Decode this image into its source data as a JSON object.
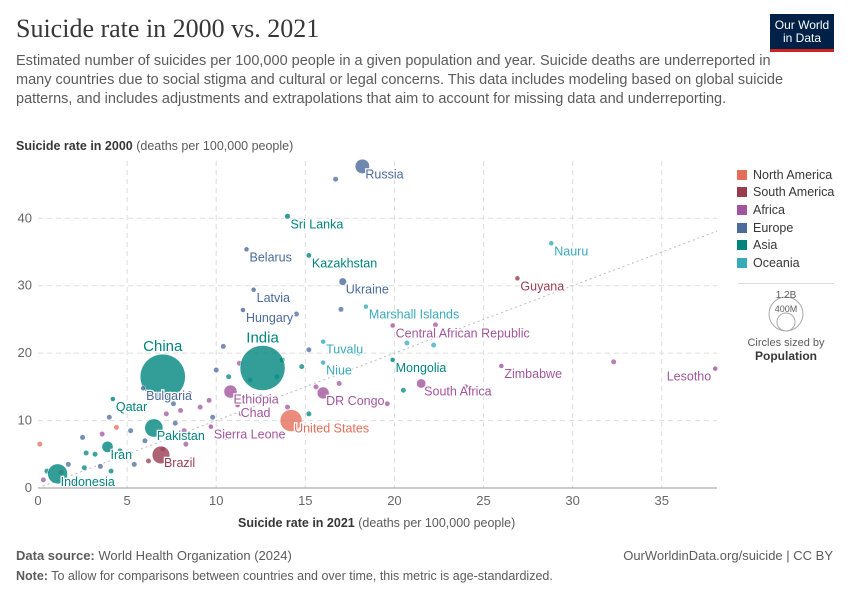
{
  "header": {
    "title": "Suicide rate in 2000 vs. 2021",
    "subtitle": "Estimated number of suicides per 100,000 people in a given population and year. Suicide deaths are underreported in many countries due to social stigma and cultural or legal concerns. This data includes modeling based on global suicide patterns, and includes adjustments and extrapolations that aim to account for missing data and underreporting.",
    "logo": "Our World in Data"
  },
  "chart_data": {
    "type": "scatter",
    "ylabel_bold": "Suicide rate in 2000",
    "ylabel_rest": " (deaths per 100,000 people)",
    "xlabel_bold": "Suicide rate in 2021",
    "xlabel_rest": " (deaths per 100,000 people)",
    "xlim": [
      0,
      38.1
    ],
    "ylim": [
      0,
      48.5
    ],
    "xticks": [
      0,
      5,
      10,
      15,
      20,
      25,
      30,
      35
    ],
    "yticks": [
      0,
      10,
      20,
      30,
      40
    ],
    "grid": true,
    "reference_line": "y = x",
    "regions": [
      {
        "name": "North America",
        "color": "#e56e5a"
      },
      {
        "name": "South America",
        "color": "#9a3c50"
      },
      {
        "name": "Africa",
        "color": "#a2559c"
      },
      {
        "name": "Europe",
        "color": "#4c6a9c"
      },
      {
        "name": "Asia",
        "color": "#00847e"
      },
      {
        "name": "Oceania",
        "color": "#38aaba"
      }
    ],
    "labeled_points": [
      {
        "name": "Russia",
        "x": 18.2,
        "y": 47.7,
        "region": "Europe",
        "pop": 145
      },
      {
        "name": "Sri Lanka",
        "x": 14.0,
        "y": 40.3,
        "region": "Asia",
        "pop": 22
      },
      {
        "name": "Belarus",
        "x": 11.7,
        "y": 35.4,
        "region": "Europe",
        "pop": 9
      },
      {
        "name": "Kazakhstan",
        "x": 15.2,
        "y": 34.5,
        "region": "Asia",
        "pop": 19
      },
      {
        "name": "Latvia",
        "x": 12.1,
        "y": 29.4,
        "region": "Europe",
        "pop": 2
      },
      {
        "name": "Ukraine",
        "x": 17.1,
        "y": 30.6,
        "region": "Europe",
        "pop": 40
      },
      {
        "name": "Hungary",
        "x": 11.5,
        "y": 26.4,
        "region": "Europe",
        "pop": 10
      },
      {
        "name": "Marshall Islands",
        "x": 18.4,
        "y": 26.9,
        "region": "Oceania",
        "pop": 0.05
      },
      {
        "name": "Nauru",
        "x": 28.8,
        "y": 36.3,
        "region": "Oceania",
        "pop": 0.01
      },
      {
        "name": "Guyana",
        "x": 26.9,
        "y": 31.1,
        "region": "South America",
        "pop": 0.8
      },
      {
        "name": "Central African Republic",
        "x": 19.9,
        "y": 24.1,
        "region": "Africa",
        "pop": 5
      },
      {
        "name": "Tuvalu",
        "x": 16.0,
        "y": 21.7,
        "region": "Oceania",
        "pop": 0.01
      },
      {
        "name": "Niue",
        "x": 16.0,
        "y": 18.6,
        "region": "Oceania",
        "pop": 0.01
      },
      {
        "name": "Mongolia",
        "x": 19.9,
        "y": 19.0,
        "region": "Asia",
        "pop": 3
      },
      {
        "name": "Zimbabwe",
        "x": 26.0,
        "y": 18.1,
        "region": "Africa",
        "pop": 16
      },
      {
        "name": "Lesotho",
        "x": 38.0,
        "y": 17.7,
        "region": "Africa",
        "pop": 2
      },
      {
        "name": "South Africa",
        "x": 21.5,
        "y": 15.5,
        "region": "Africa",
        "pop": 60
      },
      {
        "name": "DR Congo",
        "x": 16.0,
        "y": 14.1,
        "region": "Africa",
        "pop": 100
      },
      {
        "name": "United States",
        "x": 14.2,
        "y": 10.0,
        "region": "North America",
        "pop": 335
      },
      {
        "name": "India",
        "x": 12.6,
        "y": 17.8,
        "region": "Asia",
        "pop": 1410
      },
      {
        "name": "China",
        "x": 7.0,
        "y": 16.5,
        "region": "Asia",
        "pop": 1420
      },
      {
        "name": "Bulgaria",
        "x": 5.9,
        "y": 14.8,
        "region": "Europe",
        "pop": 7
      },
      {
        "name": "Ethiopia",
        "x": 10.8,
        "y": 14.3,
        "region": "Africa",
        "pop": 120
      },
      {
        "name": "Qatar",
        "x": 4.2,
        "y": 13.2,
        "region": "Asia",
        "pop": 3
      },
      {
        "name": "Chad",
        "x": 11.2,
        "y": 12.3,
        "region": "Africa",
        "pop": 18
      },
      {
        "name": "Pakistan",
        "x": 6.5,
        "y": 8.9,
        "region": "Asia",
        "pop": 230
      },
      {
        "name": "Sierra Leone",
        "x": 9.7,
        "y": 9.1,
        "region": "Africa",
        "pop": 8
      },
      {
        "name": "Iran",
        "x": 3.9,
        "y": 6.1,
        "region": "Asia",
        "pop": 88
      },
      {
        "name": "Brazil",
        "x": 6.9,
        "y": 4.9,
        "region": "South America",
        "pop": 214
      },
      {
        "name": "Indonesia",
        "x": 1.1,
        "y": 2.1,
        "region": "Asia",
        "pop": 275
      }
    ],
    "other_points": [
      [
        16.7,
        45.8,
        "Europe"
      ],
      [
        14.5,
        25.8,
        "Europe"
      ],
      [
        12.9,
        25.2,
        "Europe"
      ],
      [
        17.0,
        26.5,
        "Europe"
      ],
      [
        13.5,
        25.0,
        "Europe"
      ],
      [
        15.2,
        20.5,
        "Europe"
      ],
      [
        10.4,
        21.0,
        "Europe"
      ],
      [
        22.3,
        24.2,
        "Africa"
      ],
      [
        22.2,
        21.2,
        "Oceania"
      ],
      [
        20.7,
        21.5,
        "Oceania"
      ],
      [
        32.3,
        18.7,
        "Africa"
      ],
      [
        22.0,
        14.5,
        "Africa"
      ],
      [
        20.5,
        14.5,
        "Asia"
      ],
      [
        19.6,
        12.5,
        "Africa"
      ],
      [
        14.8,
        18.0,
        "Asia"
      ],
      [
        13.7,
        19.0,
        "Asia"
      ],
      [
        11.9,
        16.0,
        "Oceania"
      ],
      [
        11.3,
        18.5,
        "Africa"
      ],
      [
        15.6,
        15.0,
        "Africa"
      ],
      [
        16.9,
        15.5,
        "Africa"
      ],
      [
        13.0,
        13.5,
        "Africa"
      ],
      [
        15.2,
        11.0,
        "Asia"
      ],
      [
        14.0,
        12.0,
        "Africa"
      ],
      [
        12.5,
        13.5,
        "Europe"
      ],
      [
        9.6,
        13.0,
        "Africa"
      ],
      [
        8.5,
        14.0,
        "Europe"
      ],
      [
        9.1,
        12.0,
        "Africa"
      ],
      [
        8.0,
        11.5,
        "Africa"
      ],
      [
        7.6,
        12.5,
        "Europe"
      ],
      [
        7.2,
        11.0,
        "Africa"
      ],
      [
        5.0,
        12.0,
        "North America"
      ],
      [
        4.0,
        10.5,
        "Europe"
      ],
      [
        4.4,
        9.0,
        "North America"
      ],
      [
        5.2,
        8.5,
        "Europe"
      ],
      [
        3.6,
        8.0,
        "Africa"
      ],
      [
        2.5,
        7.5,
        "Europe"
      ],
      [
        7.7,
        9.6,
        "Europe"
      ],
      [
        8.2,
        8.5,
        "Africa"
      ],
      [
        8.8,
        7.5,
        "South America"
      ],
      [
        8.3,
        6.5,
        "Africa"
      ],
      [
        6.0,
        7.0,
        "Europe"
      ],
      [
        4.6,
        5.5,
        "Asia"
      ],
      [
        3.2,
        5.0,
        "Asia"
      ],
      [
        2.7,
        5.2,
        "Asia"
      ],
      [
        1.7,
        3.5,
        "Europe"
      ],
      [
        1.3,
        2.3,
        "North America"
      ],
      [
        2.6,
        3.0,
        "Asia"
      ],
      [
        4.1,
        2.5,
        "Asia"
      ],
      [
        0.5,
        2.5,
        "Asia"
      ],
      [
        0.3,
        1.2,
        "Africa"
      ],
      [
        0.1,
        6.5,
        "North America"
      ],
      [
        5.4,
        3.5,
        "Europe"
      ],
      [
        6.2,
        4.0,
        "South America"
      ],
      [
        7.0,
        5.8,
        "Africa"
      ],
      [
        9.8,
        10.5,
        "Europe"
      ],
      [
        10.7,
        16.5,
        "Asia"
      ],
      [
        10.0,
        17.5,
        "Europe"
      ],
      [
        11.4,
        11.0,
        "Africa"
      ],
      [
        13.4,
        16.5,
        "Oceania"
      ],
      [
        18.0,
        20.0,
        "Oceania"
      ],
      [
        24.0,
        15.0,
        "Africa"
      ],
      [
        18.8,
        12.5,
        "Asia"
      ],
      [
        10.5,
        7.5,
        "Africa"
      ],
      [
        2.0,
        1.0,
        "South America"
      ],
      [
        3.5,
        3.2,
        "Europe"
      ]
    ]
  },
  "legend": {
    "size_label_large": "1.2B",
    "size_label_small": "400M",
    "size_title": "Circles sized by",
    "size_var": "Population"
  },
  "footer": {
    "source_label": "Data source:",
    "source": " World Health Organization (2024)",
    "url": "OurWorldinData.org/suicide | CC BY",
    "note_label": "Note:",
    "note": " To allow for comparisons between countries and over time, this metric is age-standardized."
  }
}
